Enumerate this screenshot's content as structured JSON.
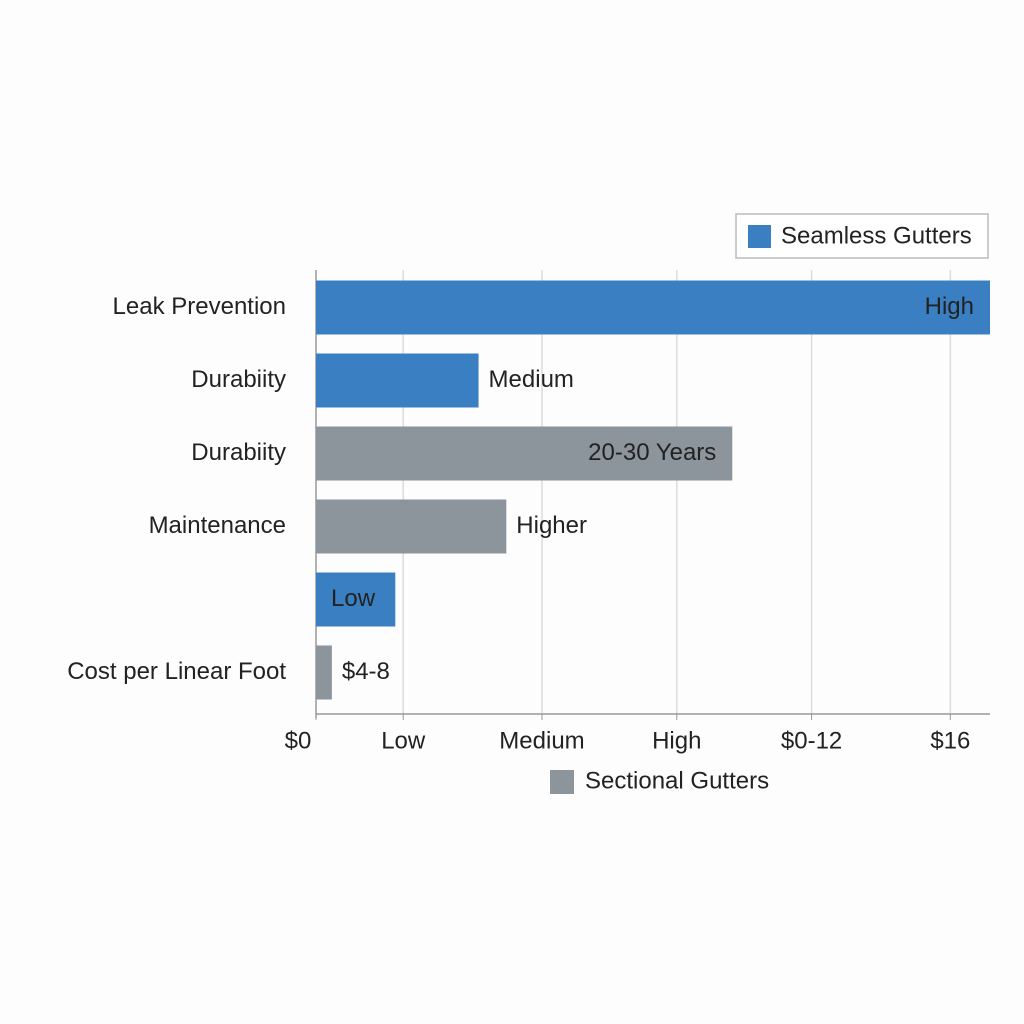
{
  "chart_data": {
    "type": "bar",
    "orientation": "horizontal",
    "categories": [
      "Leak Prevention",
      "Durabiity",
      "Durabiity",
      "Maintenance",
      null,
      "Cost per Linear Foot"
    ],
    "series": [
      {
        "name": "Seamless Gutters",
        "color": "#3a7fc1",
        "values": [
          17,
          4.1,
          null,
          null,
          2.0,
          null
        ],
        "value_labels": [
          "High",
          "Medium",
          null,
          null,
          "Low",
          null
        ]
      },
      {
        "name": "Sectional Gutters",
        "color": "#8c949c",
        "values": [
          null,
          null,
          10.5,
          4.8,
          null,
          0.4
        ],
        "value_labels": [
          null,
          null,
          "20-30 Years",
          "Higher",
          null,
          "$4-8"
        ]
      }
    ],
    "xlim": [
      0,
      17
    ],
    "xticks": [
      {
        "value": 0,
        "label": "$0"
      },
      {
        "value": 2.2,
        "label": "Low"
      },
      {
        "value": 5.7,
        "label": "Medium"
      },
      {
        "value": 9.1,
        "label": "High"
      },
      {
        "value": 12.5,
        "label": "$0-12"
      },
      {
        "value": 16,
        "label": "$16"
      }
    ],
    "grid": true
  }
}
